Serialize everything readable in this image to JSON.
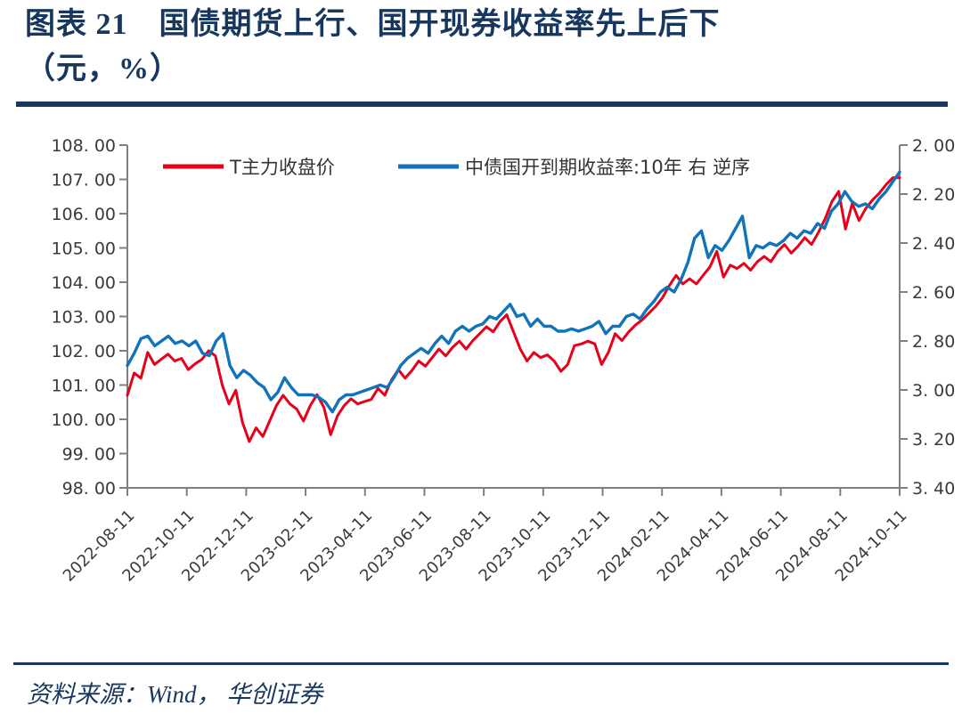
{
  "figure": {
    "title_line1": "图表 21　国债期货上行、国开现券收益率先上后下",
    "title_line2": "（元，%）",
    "source": "资料来源：Wind， 华创证券"
  },
  "colors": {
    "navy": "#17375e",
    "red": "#e60019",
    "blue": "#1173b9",
    "axis": "#7f7f7f",
    "text": "#3a3a3a"
  },
  "chart_data": {
    "type": "line",
    "legend_position": "top-inside",
    "grid": false,
    "x_ticks": [
      "2022-08-11",
      "2022-10-11",
      "2022-12-11",
      "2023-02-11",
      "2023-04-11",
      "2023-06-11",
      "2023-08-11",
      "2023-10-11",
      "2023-12-11",
      "2024-02-11",
      "2024-04-11",
      "2024-06-11",
      "2024-08-11",
      "2024-10-11"
    ],
    "left_axis": {
      "min": 98,
      "max": 108,
      "step": 1,
      "labels": [
        "108. 00",
        "107. 00",
        "106. 00",
        "105. 00",
        "104. 00",
        "103. 00",
        "102. 00",
        "101. 00",
        "100. 00",
        "99. 00",
        "98. 00"
      ]
    },
    "right_axis": {
      "min": 2.0,
      "max": 3.4,
      "step": 0.2,
      "inverted": true,
      "labels": [
        "2. 00",
        "2. 20",
        "2. 40",
        "2. 60",
        "2. 80",
        "3. 00",
        "3. 20",
        "3. 40"
      ]
    },
    "series": [
      {
        "id": "series-t-futures",
        "name": "T主力收盘价",
        "axis": "left",
        "color_key": "red",
        "values": [
          100.7,
          101.35,
          101.2,
          101.95,
          101.6,
          101.75,
          101.9,
          101.7,
          101.78,
          101.45,
          101.62,
          101.75,
          102,
          101.85,
          101,
          100.45,
          100.85,
          99.9,
          99.35,
          99.75,
          99.5,
          99.95,
          100.4,
          100.7,
          100.45,
          100.3,
          99.95,
          100.4,
          100.72,
          100.35,
          99.55,
          100.1,
          100.4,
          100.6,
          100.45,
          100.52,
          100.58,
          100.9,
          100.7,
          101.15,
          101.45,
          101.2,
          101.42,
          101.7,
          101.55,
          101.8,
          102.05,
          101.85,
          102.1,
          102.28,
          102.05,
          102.3,
          102.5,
          102.7,
          102.55,
          102.85,
          103.05,
          102.55,
          102.05,
          101.7,
          101.95,
          101.8,
          101.88,
          101.7,
          101.4,
          101.6,
          102.15,
          102.2,
          102.28,
          102.2,
          101.6,
          101.95,
          102.5,
          102.3,
          102.55,
          102.75,
          102.9,
          103.1,
          103.3,
          103.55,
          103.9,
          104.2,
          103.95,
          104.1,
          103.95,
          104.2,
          104.45,
          104.9,
          104.15,
          104.5,
          104.4,
          104.55,
          104.35,
          104.6,
          104.75,
          104.6,
          104.9,
          105.1,
          104.85,
          105.05,
          105.3,
          105.1,
          105.45,
          105.85,
          106.35,
          106.65,
          105.55,
          106.3,
          105.8,
          106.15,
          106.4,
          106.6,
          106.85,
          107.05,
          107.05
        ]
      },
      {
        "id": "series-cdb-yield",
        "name": "中债国开到期收益率:10年 右 逆序",
        "axis": "right",
        "color_key": "blue",
        "values": [
          2.9,
          2.85,
          2.79,
          2.78,
          2.82,
          2.8,
          2.78,
          2.81,
          2.8,
          2.82,
          2.8,
          2.85,
          2.86,
          2.8,
          2.77,
          2.9,
          2.95,
          2.92,
          2.94,
          2.97,
          2.99,
          3.04,
          3.01,
          2.95,
          2.99,
          3.02,
          3.02,
          3.02,
          3.03,
          3.05,
          3.09,
          3.04,
          3.02,
          3.02,
          3.01,
          3,
          2.99,
          2.98,
          2.99,
          2.95,
          2.9,
          2.87,
          2.85,
          2.83,
          2.85,
          2.81,
          2.78,
          2.81,
          2.76,
          2.74,
          2.76,
          2.74,
          2.73,
          2.7,
          2.71,
          2.68,
          2.65,
          2.7,
          2.69,
          2.74,
          2.71,
          2.74,
          2.74,
          2.76,
          2.76,
          2.75,
          2.76,
          2.75,
          2.74,
          2.72,
          2.77,
          2.74,
          2.74,
          2.7,
          2.69,
          2.71,
          2.67,
          2.64,
          2.6,
          2.58,
          2.6,
          2.55,
          2.48,
          2.38,
          2.35,
          2.46,
          2.41,
          2.43,
          2.39,
          2.34,
          2.29,
          2.46,
          2.41,
          2.42,
          2.4,
          2.41,
          2.39,
          2.36,
          2.38,
          2.35,
          2.36,
          2.32,
          2.34,
          2.27,
          2.24,
          2.19,
          2.23,
          2.25,
          2.24,
          2.26,
          2.22,
          2.19,
          2.15,
          2.11
        ]
      }
    ]
  }
}
